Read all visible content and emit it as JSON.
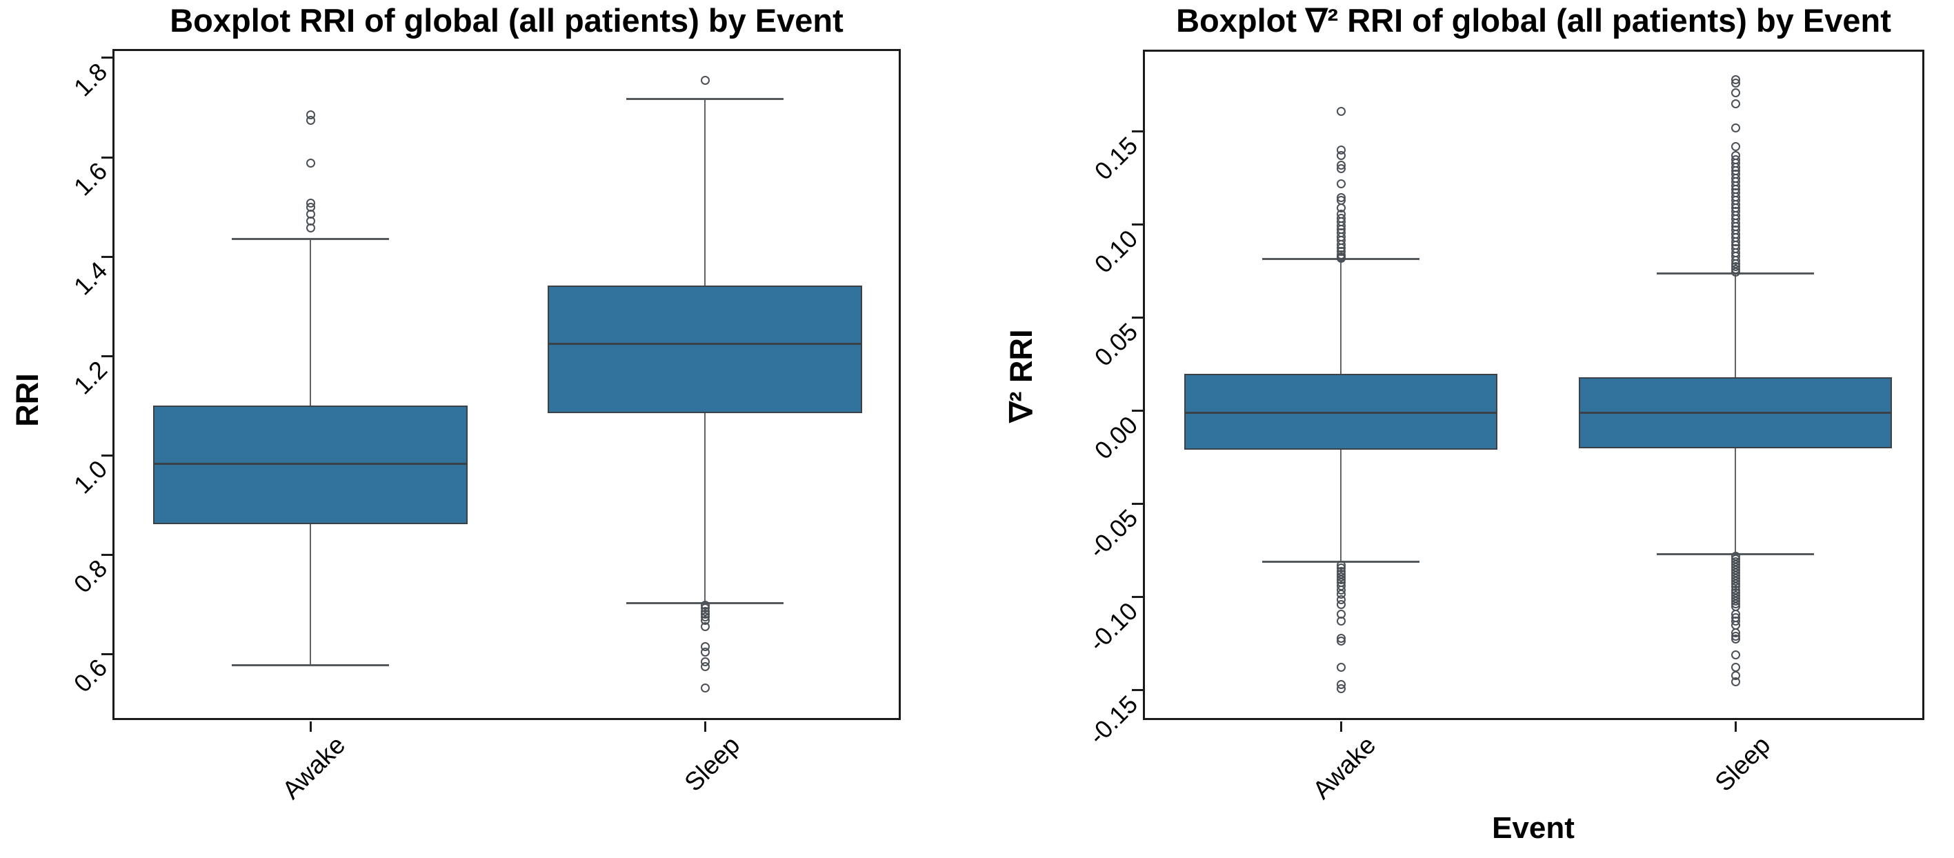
{
  "colors": {
    "box_fill": "#32739E",
    "box_edge": "#3A4147",
    "median": "#3A4147",
    "whisker": "#5E6468",
    "cap": "#54595D",
    "outlier_stroke": "#4A5056",
    "spine": "#1B1B1B",
    "text": "#000000"
  },
  "chart_data": [
    {
      "type": "boxplot",
      "title": "Boxplot RRI of global (all patients) by Event",
      "ylabel": "RRI",
      "xlabel": "",
      "categories": [
        "Awake",
        "Sleep"
      ],
      "ylim": [
        0.467,
        1.818
      ],
      "yticks": [
        {
          "v": 1.8,
          "label": "1.8"
        },
        {
          "v": 1.6,
          "label": "1.6"
        },
        {
          "v": 1.4,
          "label": "1.4"
        },
        {
          "v": 1.2,
          "label": "1.2"
        },
        {
          "v": 1.0,
          "label": "1.0"
        },
        {
          "v": 0.8,
          "label": "0.8"
        },
        {
          "v": 0.6,
          "label": "0.6"
        }
      ],
      "grid": false,
      "legend": null,
      "boxes": [
        {
          "category": "Awake",
          "whisker_low": 0.578,
          "q1": 0.862,
          "median": 0.983,
          "q3": 1.1,
          "whisker_high": 1.435,
          "outliers_high": [
            1.685,
            1.674,
            1.588,
            1.508,
            1.499,
            1.486,
            1.472,
            1.457
          ],
          "outliers_low": []
        },
        {
          "category": "Sleep",
          "whisker_low": 0.702,
          "q1": 1.085,
          "median": 1.224,
          "q3": 1.342,
          "whisker_high": 1.718,
          "outliers_high": [
            1.755
          ],
          "outliers_low": [
            0.698,
            0.692,
            0.686,
            0.68,
            0.674,
            0.668,
            0.655,
            0.615,
            0.604,
            0.585,
            0.575,
            0.531
          ]
        }
      ]
    },
    {
      "type": "boxplot",
      "title": "Boxplot ∇² RRI of global (all patients) by Event",
      "ylabel": "∇² RRI",
      "xlabel": "Event",
      "categories": [
        "Awake",
        "Sleep"
      ],
      "ylim": [
        -0.166,
        0.194
      ],
      "yticks": [
        {
          "v": 0.15,
          "label": "0.15"
        },
        {
          "v": 0.1,
          "label": "0.10"
        },
        {
          "v": 0.05,
          "label": "0.05"
        },
        {
          "v": 0.0,
          "label": "0.00"
        },
        {
          "v": -0.05,
          "label": "-0.05"
        },
        {
          "v": -0.1,
          "label": "-0.10"
        },
        {
          "v": -0.15,
          "label": "-0.15"
        }
      ],
      "grid": false,
      "legend": null,
      "boxes": [
        {
          "category": "Awake",
          "whisker_low": -0.081,
          "q1": -0.021,
          "median": -0.001,
          "q3": 0.02,
          "whisker_high": 0.0815,
          "outliers_high": [
            0.161,
            0.14,
            0.137,
            0.132,
            0.13,
            0.122,
            0.1145,
            0.113,
            0.109,
            0.1055,
            0.1035,
            0.1015,
            0.0995,
            0.0975,
            0.0955,
            0.0935,
            0.0915,
            0.0895,
            0.0875,
            0.0855,
            0.084,
            0.0828,
            0.082
          ],
          "outliers_low": [
            -0.083,
            -0.0845,
            -0.086,
            -0.0875,
            -0.089,
            -0.0905,
            -0.092,
            -0.094,
            -0.096,
            -0.0985,
            -0.1015,
            -0.104,
            -0.109,
            -0.113,
            -0.122,
            -0.1235,
            -0.1375,
            -0.147,
            -0.149
          ]
        },
        {
          "category": "Sleep",
          "whisker_low": -0.077,
          "q1": -0.02,
          "median": -0.001,
          "q3": 0.018,
          "whisker_high": 0.0737,
          "outliers_high": [
            0.178,
            0.176,
            0.171,
            0.165,
            0.152,
            0.142,
            0.137,
            0.135,
            0.133,
            0.131,
            0.129,
            0.127,
            0.125,
            0.123,
            0.121,
            0.119,
            0.117,
            0.115,
            0.113,
            0.111,
            0.109,
            0.107,
            0.105,
            0.103,
            0.101,
            0.099,
            0.097,
            0.095,
            0.093,
            0.091,
            0.089,
            0.087,
            0.085,
            0.083,
            0.081,
            0.079,
            0.0775,
            0.076,
            0.0745
          ],
          "outliers_low": [
            -0.078,
            -0.0795,
            -0.081,
            -0.0825,
            -0.084,
            -0.0855,
            -0.087,
            -0.0885,
            -0.09,
            -0.0915,
            -0.093,
            -0.0945,
            -0.096,
            -0.0975,
            -0.099,
            -0.1005,
            -0.102,
            -0.1035,
            -0.105,
            -0.109,
            -0.111,
            -0.113,
            -0.115,
            -0.119,
            -0.121,
            -0.1225,
            -0.131,
            -0.1375,
            -0.142,
            -0.1455
          ]
        }
      ]
    }
  ]
}
